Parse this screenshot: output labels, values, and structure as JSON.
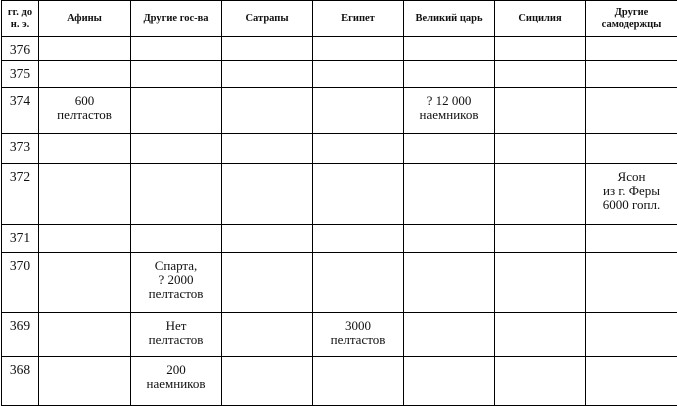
{
  "table": {
    "headers": [
      "гг. до\nн. э.",
      "Афины",
      "Другие гос-ва",
      "Сатрапы",
      "Египет",
      "Великий царь",
      "Сицилия",
      "Другие\nсамодержцы"
    ],
    "rows": [
      {
        "year": "376",
        "cells": [
          "",
          "",
          "",
          "",
          "",
          "",
          ""
        ]
      },
      {
        "year": "375",
        "cells": [
          "",
          "",
          "",
          "",
          "",
          "",
          ""
        ]
      },
      {
        "year": "374",
        "cells": [
          "600\nпелтастов",
          "",
          "",
          "",
          "? 12 000\nнаемников",
          "",
          ""
        ]
      },
      {
        "year": "373",
        "cells": [
          "",
          "",
          "",
          "",
          "",
          "",
          ""
        ]
      },
      {
        "year": "372",
        "cells": [
          "",
          "",
          "",
          "",
          "",
          "",
          "Ясон\nиз г. Феры\n6000 гопл."
        ]
      },
      {
        "year": "371",
        "cells": [
          "",
          "",
          "",
          "",
          "",
          "",
          ""
        ]
      },
      {
        "year": "370",
        "cells": [
          "",
          "Спарта,\n? 2000\nпелтастов",
          "",
          "",
          "",
          "",
          ""
        ]
      },
      {
        "year": "369",
        "cells": [
          "",
          "Нет\nпелтастов",
          "",
          "3000\nпелтастов",
          "",
          "",
          ""
        ]
      },
      {
        "year": "368",
        "cells": [
          "",
          "200\nнаемников",
          "",
          "",
          "",
          "",
          ""
        ]
      }
    ]
  }
}
